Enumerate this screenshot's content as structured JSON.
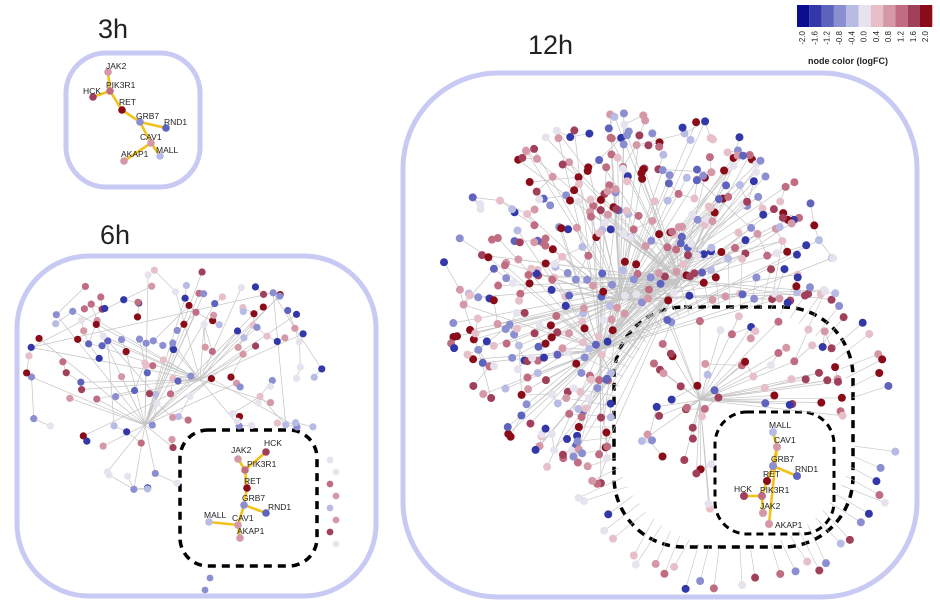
{
  "panels": [
    {
      "title": "3h"
    },
    {
      "title": "6h"
    },
    {
      "title": "12h"
    }
  ],
  "legend": {
    "title": "node color (logFC)",
    "ticks": [
      "-2.0",
      "-1.6",
      "-1.2",
      "-0.8",
      "-0.4",
      "0.0",
      "0.4",
      "0.8",
      "1.2",
      "1.6",
      "2.0"
    ],
    "colors": [
      "#0b0f8f",
      "#3238a8",
      "#5e63bd",
      "#8b8fd1",
      "#b8bbe3",
      "#e6e3ee",
      "#e7bfc8",
      "#d598a6",
      "#c06d82",
      "#a0405a",
      "#8a0c18"
    ]
  },
  "genes": {
    "jak2": "JAK2",
    "pik3r1": "PIK3R1",
    "hck": "HCK",
    "ret": "RET",
    "grb7": "GRB7",
    "rnd1": "RND1",
    "cav1": "CAV1",
    "mall": "MALL",
    "akap1": "AKAP1"
  },
  "colors": {
    "frame": "#c8caf3",
    "core_edge": "#f2c21a",
    "edge": "#c4c4c4",
    "dashed": "#000000"
  }
}
